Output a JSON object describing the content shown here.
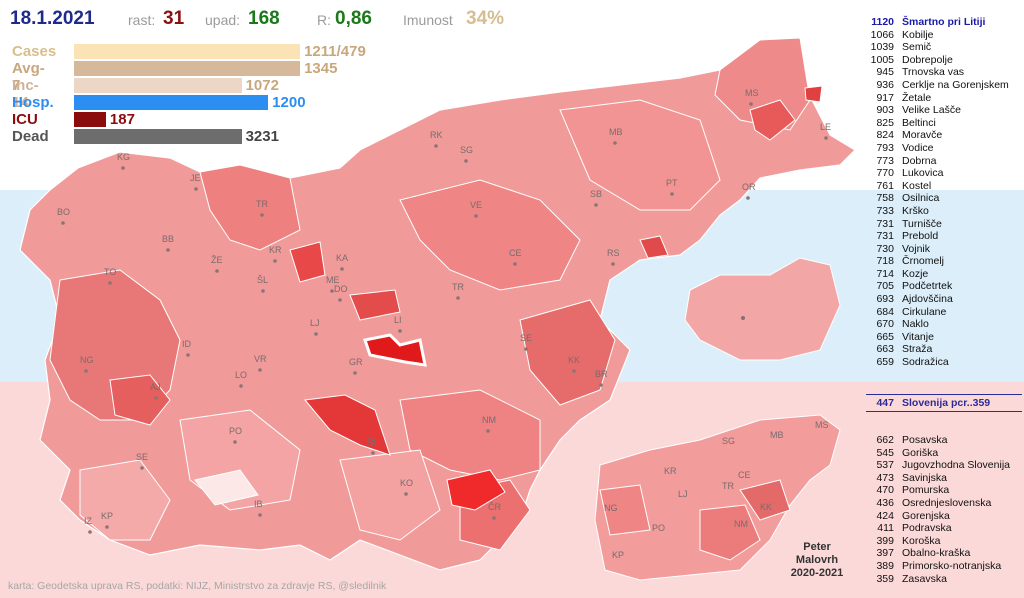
{
  "header": {
    "date": "18.1.2021",
    "rast_label": "rast:",
    "rast_value": "31",
    "upad_label": "upad:",
    "upad_value": "168",
    "r_label": "R:",
    "r_value": "0,86",
    "imunost_label": "Imunost",
    "imunost_value": "34%"
  },
  "bars": [
    {
      "label": "Cases",
      "value": "1211/479",
      "fraction": 0.85,
      "color": "#fbe3b6",
      "label_color": "#d8bf8c"
    },
    {
      "label": "Avg-7",
      "value": "1345",
      "fraction": 0.85,
      "color": "#d6b99a",
      "label_color": "#c9a77c"
    },
    {
      "label": "Inc-14",
      "value": "1072",
      "fraction": 0.63,
      "color": "#ecd6c6",
      "label_color": "#cfb29a"
    },
    {
      "label": "Hosp.",
      "value": "1200",
      "fraction": 0.73,
      "color": "#2b8ef0",
      "label_color": "#2b8ef0"
    },
    {
      "label": "ICU",
      "value": "187",
      "fraction": 0.12,
      "color": "#8b0c0c",
      "label_color": "#8b0c0c"
    },
    {
      "label": "Dead",
      "value": "3231",
      "fraction": 0.63,
      "color": "#6d6d6d",
      "label_color": "#555555"
    }
  ],
  "top_municipalities": [
    {
      "value": "1120",
      "name": "Šmartno pri Litiji"
    },
    {
      "value": "1066",
      "name": "Kobilje"
    },
    {
      "value": "1039",
      "name": "Semič"
    },
    {
      "value": "1005",
      "name": "Dobrepolje"
    },
    {
      "value": "945",
      "name": "Trnovska vas"
    },
    {
      "value": "936",
      "name": "Cerklje na Gorenjskem"
    },
    {
      "value": "917",
      "name": "Žetale"
    },
    {
      "value": "903",
      "name": "Velike Lašče"
    },
    {
      "value": "825",
      "name": "Beltinci"
    },
    {
      "value": "824",
      "name": "Moravče"
    },
    {
      "value": "793",
      "name": "Vodice"
    },
    {
      "value": "773",
      "name": "Dobrna"
    },
    {
      "value": "770",
      "name": "Lukovica"
    },
    {
      "value": "761",
      "name": "Kostel"
    },
    {
      "value": "758",
      "name": "Osilnica"
    },
    {
      "value": "733",
      "name": "Krško"
    },
    {
      "value": "731",
      "name": "Turnišče"
    },
    {
      "value": "731",
      "name": "Prebold"
    },
    {
      "value": "730",
      "name": "Vojnik"
    },
    {
      "value": "718",
      "name": "Črnomelj"
    },
    {
      "value": "714",
      "name": "Kozje"
    },
    {
      "value": "705",
      "name": "Podčetrtek"
    },
    {
      "value": "693",
      "name": "Ajdovščina"
    },
    {
      "value": "684",
      "name": "Cirkulane"
    },
    {
      "value": "670",
      "name": "Naklo"
    },
    {
      "value": "665",
      "name": "Vitanje"
    },
    {
      "value": "663",
      "name": "Straža"
    },
    {
      "value": "659",
      "name": "Sodražica"
    }
  ],
  "slovenia": {
    "value": "447",
    "name": "Slovenija  pcr..359"
  },
  "regions": [
    {
      "value": "662",
      "name": "Posavska"
    },
    {
      "value": "545",
      "name": "Goriška"
    },
    {
      "value": "537",
      "name": "Jugovzhodna Slovenija"
    },
    {
      "value": "473",
      "name": "Savinjska"
    },
    {
      "value": "470",
      "name": "Pomurska"
    },
    {
      "value": "436",
      "name": "Osrednjeslovenska"
    },
    {
      "value": "424",
      "name": "Gorenjska"
    },
    {
      "value": "411",
      "name": "Podravska"
    },
    {
      "value": "399",
      "name": "Koroška"
    },
    {
      "value": "397",
      "name": "Obalno-kraška"
    },
    {
      "value": "389",
      "name": "Primorsko-notranjska"
    },
    {
      "value": "359",
      "name": "Zasavska"
    }
  ],
  "map_labels": [
    "KG",
    "JE",
    "BO",
    "TR",
    "BB",
    "ŽE",
    "KR",
    "KA",
    "TO",
    "ŠL",
    "ME",
    "DO",
    "LJ",
    "LI",
    "TR",
    "RK",
    "SG",
    "MB",
    "MS",
    "LE",
    "PT",
    "OR",
    "SB",
    "VE",
    "CE",
    "RS",
    "NG",
    "ID",
    "AJ",
    "VR",
    "LO",
    "GR",
    "SE",
    "KK",
    "BR",
    "PO",
    "RI",
    "NM",
    "SE",
    "KO",
    "IB",
    "ČR",
    "IZ",
    "KP"
  ],
  "region_labels": [
    "SG",
    "MB",
    "MS",
    "KR",
    "CE",
    "TR",
    "LJ",
    "NG",
    "PO",
    "NM",
    "KK",
    "KP"
  ],
  "author": [
    "Peter",
    "Malovrh",
    "2020-2021"
  ],
  "credit": "karta: Geodetska uprava RS,  podatki: NIJZ, Ministrstvo za zdravje RS, @sledilnik",
  "colors": {
    "background_top": "#ffffff",
    "background_mid": "#dbeefa",
    "background_bottom": "#fcd9d9",
    "map_base": "#f28b8b",
    "highlight": "#e02020"
  }
}
